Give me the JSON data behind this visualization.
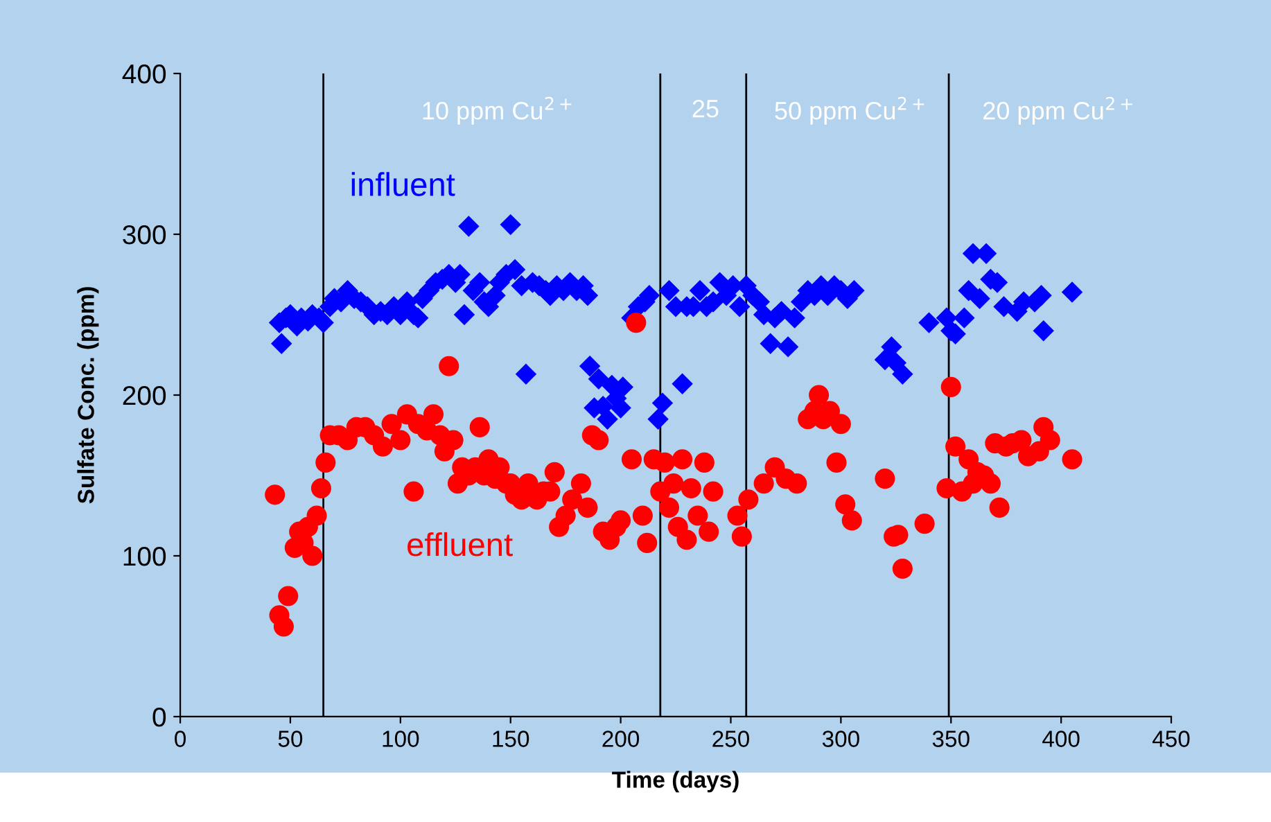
{
  "chart_data": {
    "type": "scatter",
    "xlabel": "Time (days)",
    "ylabel": "Sulfate Conc. (ppm)",
    "xlim": [
      0,
      450
    ],
    "ylim": [
      0,
      400
    ],
    "xticks": [
      0,
      50,
      100,
      150,
      200,
      250,
      300,
      350,
      400,
      450
    ],
    "yticks": [
      0,
      100,
      200,
      300,
      400
    ],
    "grid": false,
    "legend": false,
    "ref_lines": [
      {
        "axis": "x",
        "value": 65,
        "color": "#000000"
      },
      {
        "axis": "x",
        "value": 218,
        "color": "#000000"
      },
      {
        "axis": "x",
        "value": 257,
        "color": "#000000"
      },
      {
        "axis": "x",
        "value": 349,
        "color": "#000000"
      }
    ],
    "annotations": [
      "10 ppm Cu$^{2+}$",
      "25",
      "50 ppm Cu$^{2+}$",
      "20 ppm Cu$^{2+}$"
    ],
    "series": [
      {
        "name": "influent",
        "color": "#0000ff",
        "marker": "diamond",
        "x": [
          45,
          46,
          48,
          50,
          53,
          55,
          58,
          60,
          63,
          65,
          68,
          70,
          73,
          76,
          79,
          82,
          85,
          88,
          91,
          94,
          97,
          100,
          103,
          106,
          108,
          110,
          113,
          116,
          119,
          122,
          125,
          127,
          129,
          131,
          133,
          136,
          138,
          140,
          143,
          145,
          148,
          150,
          152,
          155,
          157,
          160,
          163,
          166,
          168,
          171,
          174,
          177,
          180,
          183,
          185,
          186,
          188,
          190,
          192,
          194,
          196,
          198,
          200,
          201,
          205,
          208,
          211,
          213,
          217,
          219,
          222,
          225,
          228,
          230,
          233,
          236,
          239,
          242,
          245,
          248,
          251,
          254,
          257,
          260,
          263,
          265,
          268,
          270,
          273,
          276,
          279,
          282,
          285,
          288,
          291,
          294,
          297,
          300,
          303,
          306,
          320,
          323,
          325,
          328,
          340,
          348,
          350,
          352,
          356,
          358,
          360,
          363,
          366,
          368,
          371,
          374,
          380,
          383,
          388,
          391,
          392,
          405
        ],
        "values": [
          245,
          232,
          248,
          250,
          243,
          248,
          246,
          250,
          248,
          245,
          255,
          260,
          258,
          265,
          260,
          258,
          255,
          250,
          252,
          250,
          255,
          250,
          258,
          250,
          248,
          260,
          265,
          270,
          272,
          275,
          270,
          275,
          250,
          305,
          265,
          270,
          258,
          255,
          262,
          270,
          275,
          306,
          278,
          268,
          213,
          270,
          268,
          265,
          262,
          268,
          265,
          270,
          265,
          268,
          262,
          218,
          192,
          210,
          193,
          185,
          206,
          198,
          192,
          205,
          248,
          255,
          258,
          262,
          185,
          195,
          265,
          255,
          207,
          255,
          255,
          265,
          255,
          258,
          270,
          262,
          268,
          255,
          268,
          262,
          258,
          250,
          232,
          248,
          252,
          230,
          248,
          258,
          265,
          262,
          268,
          262,
          268,
          265,
          260,
          265,
          222,
          230,
          220,
          213,
          245,
          248,
          240,
          238,
          248,
          265,
          288,
          260,
          288,
          272,
          270,
          255,
          252,
          258,
          258,
          262,
          240,
          264
        ]
      },
      {
        "name": "effluent",
        "color": "#ff0000",
        "marker": "circle",
        "x": [
          43,
          45,
          47,
          49,
          52,
          54,
          56,
          58,
          60,
          62,
          64,
          66,
          68,
          72,
          76,
          80,
          84,
          88,
          92,
          96,
          100,
          103,
          106,
          108,
          112,
          115,
          118,
          120,
          122,
          124,
          126,
          128,
          131,
          134,
          136,
          138,
          140,
          143,
          145,
          148,
          150,
          152,
          155,
          158,
          162,
          165,
          168,
          170,
          172,
          175,
          178,
          182,
          185,
          187,
          190,
          192,
          195,
          198,
          200,
          205,
          207,
          210,
          212,
          215,
          218,
          220,
          222,
          224,
          226,
          228,
          230,
          232,
          235,
          238,
          240,
          242,
          253,
          255,
          258,
          265,
          270,
          275,
          280,
          285,
          288,
          290,
          292,
          295,
          298,
          300,
          302,
          305,
          320,
          324,
          326,
          328,
          338,
          348,
          350,
          352,
          355,
          358,
          360,
          362,
          365,
          368,
          370,
          372,
          375,
          378,
          382,
          385,
          390,
          392,
          395,
          405
        ],
        "values": [
          138,
          63,
          56,
          75,
          105,
          115,
          108,
          118,
          100,
          125,
          142,
          158,
          175,
          175,
          172,
          180,
          180,
          175,
          168,
          182,
          172,
          188,
          140,
          182,
          178,
          188,
          175,
          165,
          218,
          172,
          145,
          155,
          150,
          155,
          180,
          150,
          160,
          148,
          155,
          145,
          145,
          138,
          135,
          145,
          135,
          140,
          140,
          152,
          118,
          125,
          135,
          145,
          130,
          175,
          172,
          115,
          110,
          118,
          122,
          160,
          245,
          125,
          108,
          160,
          140,
          158,
          130,
          145,
          118,
          160,
          110,
          142,
          125,
          158,
          115,
          140,
          125,
          112,
          135,
          145,
          155,
          148,
          145,
          185,
          190,
          200,
          185,
          190,
          158,
          182,
          132,
          122,
          148,
          112,
          113,
          92,
          120,
          142,
          205,
          168,
          140,
          160,
          145,
          152,
          150,
          145,
          170,
          130,
          168,
          170,
          172,
          162,
          165,
          180,
          172,
          160
        ]
      }
    ]
  }
}
